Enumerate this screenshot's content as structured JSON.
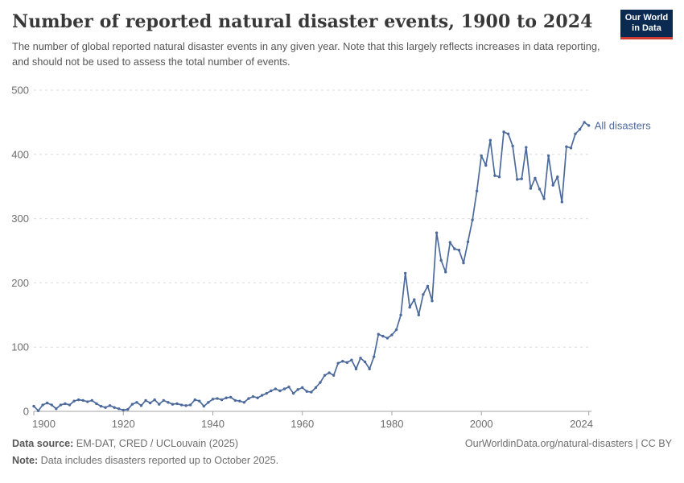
{
  "header": {
    "title": "Number of reported natural disaster events, 1900 to 2024",
    "subtitle": "The number of global reported natural disaster events in any given year. Note that this largely reflects increases in data reporting, and should not be used to assess the total number of events."
  },
  "logo": {
    "line1": "Our World",
    "line2": "in Data"
  },
  "chart_data": {
    "type": "line",
    "title": "Number of reported natural disaster events, 1900 to 2024",
    "series_label": "All disasters",
    "xlabel": "",
    "ylabel": "",
    "ylim": [
      0,
      500
    ],
    "yticks": [
      0,
      100,
      200,
      300,
      400,
      500
    ],
    "xticks": [
      1900,
      1920,
      1940,
      1960,
      1980,
      2000,
      2024
    ],
    "grid": "horizontal-dashed",
    "legend_position": "right-of-last-point",
    "line_color": "#4C6A9C",
    "years": [
      1900,
      1901,
      1902,
      1903,
      1904,
      1905,
      1906,
      1907,
      1908,
      1909,
      1910,
      1911,
      1912,
      1913,
      1914,
      1915,
      1916,
      1917,
      1918,
      1919,
      1920,
      1921,
      1922,
      1923,
      1924,
      1925,
      1926,
      1927,
      1928,
      1929,
      1930,
      1931,
      1932,
      1933,
      1934,
      1935,
      1936,
      1937,
      1938,
      1939,
      1940,
      1941,
      1942,
      1943,
      1944,
      1945,
      1946,
      1947,
      1948,
      1949,
      1950,
      1951,
      1952,
      1953,
      1954,
      1955,
      1956,
      1957,
      1958,
      1959,
      1960,
      1961,
      1962,
      1963,
      1964,
      1965,
      1966,
      1967,
      1968,
      1969,
      1970,
      1971,
      1972,
      1973,
      1974,
      1975,
      1976,
      1977,
      1978,
      1979,
      1980,
      1981,
      1982,
      1983,
      1984,
      1985,
      1986,
      1987,
      1988,
      1989,
      1990,
      1991,
      1992,
      1993,
      1994,
      1995,
      1996,
      1997,
      1998,
      1999,
      2000,
      2001,
      2002,
      2003,
      2004,
      2005,
      2006,
      2007,
      2008,
      2009,
      2010,
      2011,
      2012,
      2013,
      2014,
      2015,
      2016,
      2017,
      2018,
      2019,
      2020,
      2021,
      2022,
      2023,
      2024
    ],
    "values": [
      8,
      1,
      10,
      13,
      10,
      4,
      10,
      12,
      10,
      16,
      18,
      17,
      15,
      17,
      12,
      8,
      6,
      9,
      6,
      4,
      2,
      3,
      11,
      14,
      9,
      17,
      13,
      18,
      11,
      17,
      14,
      11,
      12,
      10,
      9,
      10,
      18,
      16,
      8,
      14,
      19,
      20,
      18,
      21,
      22,
      17,
      16,
      14,
      20,
      23,
      21,
      25,
      28,
      32,
      35,
      32,
      35,
      38,
      28,
      34,
      37,
      31,
      30,
      37,
      45,
      56,
      60,
      56,
      75,
      78,
      76,
      80,
      66,
      83,
      77,
      66,
      85,
      120,
      117,
      114,
      119,
      127,
      150,
      215,
      162,
      174,
      150,
      182,
      195,
      172,
      278,
      235,
      217,
      263,
      253,
      251,
      231,
      264,
      298,
      343,
      398,
      383,
      422,
      367,
      365,
      435,
      432,
      413,
      361,
      362,
      411,
      347,
      363,
      346,
      331,
      398,
      352,
      365,
      326,
      412,
      410,
      432,
      439,
      450,
      445
    ]
  },
  "footer": {
    "source_label": "Data source:",
    "source_text": " EM-DAT, CRED / UCLouvain (2025)",
    "note_label": "Note:",
    "note_text": " Data includes disasters reported up to October 2025.",
    "link_text": "OurWorldinData.org/natural-disasters | CC BY"
  },
  "colors": {
    "line": "#4C6A9C",
    "grid": "#dcdcdc",
    "axis": "#a3a3a3",
    "tick_label": "#6e6e6e",
    "logo_bg": "#0b2a52",
    "logo_red": "#cf3a31"
  }
}
